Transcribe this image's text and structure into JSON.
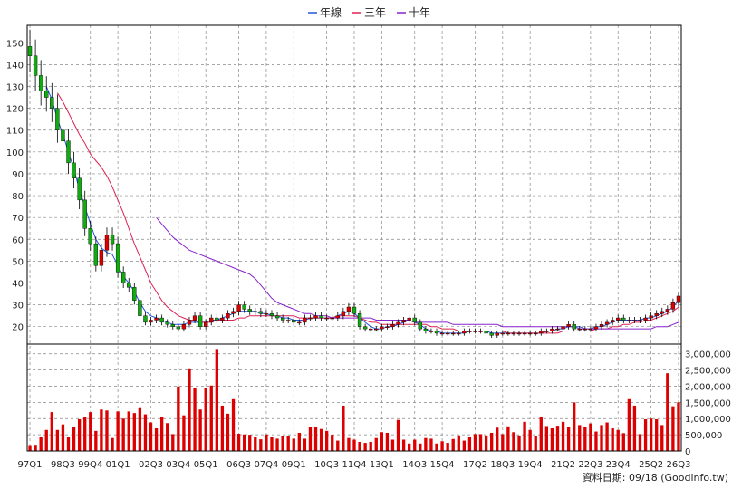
{
  "chart_data": {
    "type": "candlestick-with-volume",
    "legend": [
      {
        "name": "年線",
        "color": "#2255dd"
      },
      {
        "name": "三年",
        "color": "#dd2255"
      },
      {
        "name": "十年",
        "color": "#8822cc"
      }
    ],
    "legend_position": "top-center",
    "price_axis": {
      "ylim": [
        12,
        158
      ],
      "ticks": [
        20,
        30,
        40,
        50,
        60,
        70,
        80,
        90,
        100,
        110,
        120,
        130,
        140,
        150
      ],
      "side": "left"
    },
    "volume_axis": {
      "ylim": [
        0,
        3300000
      ],
      "ticks": [
        0,
        500000,
        1000000,
        1500000,
        2000000,
        2500000,
        3000000
      ],
      "tick_labels": [
        "0",
        "500,000",
        "1,000,000",
        "1,500,000",
        "2,000,000",
        "2,500,000",
        "3,000,000"
      ],
      "side": "right"
    },
    "x_ticks": [
      "97Q1",
      "98Q3",
      "99Q4",
      "01Q1",
      "02Q3",
      "03Q4",
      "05Q1",
      "06Q3",
      "07Q4",
      "09Q1",
      "10Q3",
      "11Q4",
      "13Q1",
      "14Q3",
      "15Q4",
      "17Q2",
      "18Q3",
      "19Q4",
      "21Q2",
      "22Q3",
      "23Q4",
      "25Q2",
      "26Q3"
    ],
    "grid": true,
    "quarters": {
      "start": "97Q1",
      "count": 119
    },
    "series": {
      "close": [
        144,
        135,
        128,
        125,
        120,
        110,
        105,
        95,
        88,
        78,
        65,
        58,
        48,
        55,
        62,
        58,
        45,
        40,
        38,
        32,
        25,
        22,
        23,
        24,
        22,
        21,
        20,
        19,
        21,
        23,
        25,
        20,
        22,
        24,
        23,
        24,
        26,
        27,
        30,
        28,
        27,
        27,
        26,
        26,
        25,
        24,
        23,
        23,
        22,
        22,
        24,
        24,
        25,
        24,
        24,
        24,
        25,
        27,
        29,
        26,
        20,
        19,
        19,
        19,
        20,
        20,
        21,
        22,
        23,
        24,
        22,
        19,
        18,
        18,
        17,
        17,
        17,
        17,
        17,
        18,
        18,
        18,
        18,
        17,
        16,
        17,
        17,
        17,
        17,
        17,
        17,
        17,
        17,
        18,
        18,
        19,
        19,
        20,
        21,
        19,
        19,
        19,
        19,
        20,
        21,
        22,
        23,
        24,
        23,
        23,
        23,
        23,
        24,
        25,
        26,
        27,
        28,
        31,
        34
      ],
      "year_line": [
        null,
        null,
        null,
        130,
        124,
        115,
        108,
        100,
        92,
        83,
        75,
        67,
        60,
        56,
        54,
        53,
        48,
        43,
        40,
        36,
        31,
        27,
        25,
        24,
        23,
        22,
        21,
        21,
        21,
        22,
        22,
        22,
        22,
        23,
        23,
        24,
        25,
        26,
        27,
        27,
        27,
        27,
        26,
        26,
        25,
        25,
        24,
        24,
        23,
        23,
        23,
        24,
        24,
        24,
        24,
        24,
        25,
        26,
        27,
        26,
        24,
        22,
        20,
        19,
        19,
        20,
        20,
        21,
        22,
        23,
        22,
        21,
        19,
        18,
        18,
        17,
        17,
        17,
        17,
        17,
        18,
        18,
        18,
        18,
        17,
        17,
        17,
        17,
        17,
        17,
        17,
        17,
        17,
        17,
        18,
        18,
        19,
        19,
        20,
        20,
        20,
        19,
        19,
        20,
        20,
        21,
        22,
        23,
        23,
        23,
        23,
        23,
        24,
        24,
        25,
        26,
        27,
        29,
        32
      ],
      "three_year": [
        null,
        null,
        null,
        null,
        null,
        127,
        123,
        118,
        113,
        108,
        104,
        99,
        96,
        93,
        89,
        84,
        78,
        72,
        65,
        58,
        52,
        46,
        40,
        36,
        32,
        29,
        27,
        25,
        24,
        23,
        23,
        22,
        22,
        22,
        23,
        23,
        23,
        23,
        24,
        24,
        25,
        25,
        25,
        25,
        25,
        25,
        25,
        25,
        25,
        24,
        24,
        24,
        24,
        24,
        24,
        24,
        25,
        25,
        25,
        25,
        24,
        23,
        22,
        22,
        21,
        21,
        21,
        21,
        21,
        21,
        21,
        21,
        21,
        20,
        20,
        19,
        19,
        19,
        18,
        18,
        18,
        18,
        18,
        18,
        18,
        18,
        18,
        17,
        17,
        17,
        17,
        17,
        17,
        17,
        17,
        17,
        17,
        18,
        18,
        18,
        18,
        18,
        18,
        19,
        19,
        19,
        20,
        20,
        21,
        21,
        22,
        22,
        23,
        23,
        24,
        25,
        26,
        27,
        29
      ],
      "ten_year": [
        null,
        null,
        null,
        null,
        null,
        null,
        null,
        null,
        null,
        null,
        null,
        null,
        null,
        null,
        null,
        null,
        null,
        null,
        null,
        null,
        null,
        null,
        null,
        70,
        67,
        64,
        61,
        59,
        57,
        55,
        54,
        53,
        52,
        51,
        50,
        49,
        48,
        47,
        46,
        45,
        44,
        42,
        39,
        36,
        33,
        31,
        30,
        29,
        28,
        27,
        26,
        26,
        25,
        25,
        25,
        24,
        24,
        24,
        24,
        24,
        24,
        24,
        24,
        23,
        23,
        23,
        23,
        23,
        23,
        23,
        22,
        22,
        22,
        22,
        22,
        22,
        22,
        21,
        21,
        21,
        21,
        21,
        21,
        21,
        21,
        21,
        20,
        20,
        20,
        20,
        20,
        20,
        20,
        20,
        20,
        20,
        20,
        20,
        20,
        20,
        19,
        19,
        19,
        19,
        19,
        19,
        19,
        19,
        19,
        19,
        19,
        19,
        19,
        19,
        20,
        20,
        20,
        21,
        22
      ],
      "volume": [
        180000,
        190000,
        420000,
        650000,
        1200000,
        650000,
        820000,
        420000,
        750000,
        980000,
        1050000,
        1200000,
        620000,
        1280000,
        1250000,
        400000,
        1220000,
        1000000,
        1220000,
        1170000,
        1350000,
        1130000,
        880000,
        700000,
        1050000,
        860000,
        520000,
        1990000,
        1100000,
        2550000,
        1930000,
        1280000,
        1950000,
        2020000,
        3150000,
        1400000,
        1150000,
        1600000,
        530000,
        510000,
        500000,
        420000,
        360000,
        510000,
        420000,
        380000,
        470000,
        450000,
        380000,
        560000,
        380000,
        730000,
        750000,
        680000,
        620000,
        500000,
        320000,
        1400000,
        400000,
        350000,
        280000,
        250000,
        280000,
        400000,
        580000,
        560000,
        350000,
        960000,
        350000,
        230000,
        350000,
        230000,
        400000,
        380000,
        230000,
        300000,
        250000,
        370000,
        480000,
        320000,
        420000,
        520000,
        520000,
        480000,
        560000,
        720000,
        520000,
        760000,
        580000,
        480000,
        900000,
        650000,
        450000,
        1040000,
        770000,
        700000,
        780000,
        900000,
        750000,
        1500000,
        800000,
        750000,
        850000,
        600000,
        800000,
        880000,
        700000,
        650000,
        550000,
        1600000,
        1400000,
        520000,
        980000,
        1000000,
        980000,
        800000,
        2400000,
        1380000,
        1500000
      ]
    }
  },
  "credit": "資料日期: 09/18  (Goodinfo.tw)",
  "colors": {
    "up": "#dd0000",
    "down": "#11aa11",
    "wick": "#000000",
    "grid": "#888888",
    "volume": "#dd0000"
  }
}
